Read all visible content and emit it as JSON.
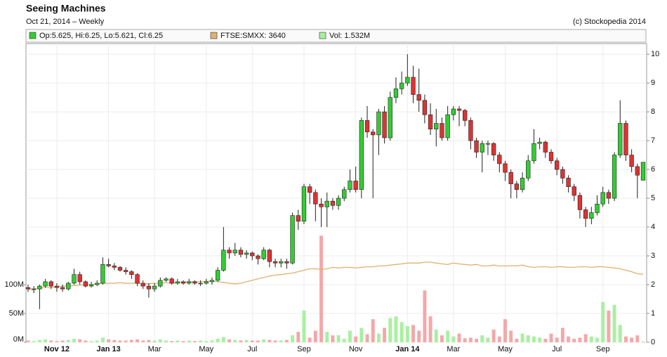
{
  "chart_data": {
    "type": "candlestick",
    "title": "Seeing Machines",
    "subtitle": "Oct 21, 2014 – Weekly",
    "source": "(c) Stockopedia 2014",
    "categories": [
      null,
      null,
      null,
      null,
      null,
      "Nov 12",
      null,
      null,
      null,
      null,
      null,
      null,
      null,
      null,
      "Jan 13",
      null,
      null,
      null,
      null,
      null,
      null,
      null,
      "Mar",
      null,
      null,
      null,
      null,
      null,
      null,
      null,
      null,
      "May",
      null,
      null,
      null,
      null,
      null,
      null,
      null,
      "Jul",
      null,
      null,
      null,
      null,
      null,
      null,
      null,
      null,
      "Sep",
      null,
      null,
      null,
      null,
      null,
      null,
      null,
      null,
      "Nov",
      null,
      null,
      null,
      null,
      null,
      null,
      null,
      null,
      "Jan 14",
      null,
      null,
      null,
      null,
      null,
      null,
      null,
      "Mar",
      null,
      null,
      null,
      null,
      null,
      null,
      null,
      null,
      "May",
      null,
      null,
      null,
      null,
      null,
      null,
      null,
      null,
      "Jul",
      null,
      null,
      null,
      null,
      null,
      null,
      null,
      "Sep",
      null,
      null,
      null,
      null,
      null,
      null,
      null
    ],
    "ylim": [
      0,
      10.37
    ],
    "yticks": [
      0,
      1,
      2,
      3,
      4,
      5,
      6,
      7,
      8,
      9,
      10
    ],
    "y2lim": [
      0,
      518500000
    ],
    "y2ticks": [
      {
        "value": 0,
        "label": "0M"
      },
      {
        "value": 50000000,
        "label": "50M"
      },
      {
        "value": 100000000,
        "label": "100M"
      }
    ],
    "grid": true,
    "series": [
      {
        "name": "Op:5.625, Hi:6.25, Lo:5.621, Cl:6.25",
        "type": "candlestick",
        "color": "#33cc33",
        "down_color": "#dd3333",
        "values": [
          [
            1.9,
            2.0,
            1.75,
            1.85
          ],
          [
            1.85,
            1.95,
            1.7,
            1.85
          ],
          [
            1.85,
            2.0,
            1.15,
            1.95
          ],
          [
            1.95,
            2.2,
            1.9,
            2.1
          ],
          [
            2.1,
            2.15,
            1.85,
            1.95
          ],
          [
            1.95,
            2.05,
            1.75,
            1.9
          ],
          [
            1.9,
            2.0,
            1.75,
            1.85
          ],
          [
            1.85,
            2.1,
            1.8,
            2.05
          ],
          [
            2.05,
            2.55,
            2.0,
            2.35
          ],
          [
            2.35,
            2.45,
            2.0,
            2.1
          ],
          [
            2.1,
            2.15,
            1.9,
            1.95
          ],
          [
            1.95,
            2.1,
            1.9,
            2.0
          ],
          [
            2.0,
            2.15,
            1.95,
            2.05
          ],
          [
            2.05,
            2.95,
            2.0,
            2.7
          ],
          [
            2.7,
            2.9,
            2.6,
            2.65
          ],
          [
            2.65,
            2.75,
            2.5,
            2.6
          ],
          [
            2.6,
            2.65,
            2.45,
            2.5
          ],
          [
            2.5,
            2.6,
            2.35,
            2.45
          ],
          [
            2.45,
            2.5,
            2.2,
            2.35
          ],
          [
            2.35,
            2.4,
            1.95,
            2.05
          ],
          [
            2.05,
            2.15,
            1.85,
            1.95
          ],
          [
            1.95,
            2.05,
            1.55,
            1.85
          ],
          [
            1.85,
            2.05,
            1.75,
            1.95
          ],
          [
            1.95,
            2.25,
            1.9,
            2.15
          ],
          [
            2.15,
            2.25,
            2.1,
            2.2
          ],
          [
            2.2,
            2.25,
            2.0,
            2.05
          ],
          [
            2.05,
            2.2,
            2.0,
            2.1
          ],
          [
            2.1,
            2.15,
            2.0,
            2.05
          ],
          [
            2.05,
            2.2,
            2.0,
            2.1
          ],
          [
            2.1,
            2.15,
            2.0,
            2.05
          ],
          [
            2.05,
            2.15,
            1.95,
            2.05
          ],
          [
            2.05,
            2.2,
            2.0,
            2.1
          ],
          [
            2.1,
            2.25,
            2.0,
            2.15
          ],
          [
            2.15,
            2.6,
            2.1,
            2.5
          ],
          [
            2.5,
            4.0,
            2.45,
            3.2
          ],
          [
            3.2,
            3.3,
            2.9,
            3.1
          ],
          [
            3.1,
            3.45,
            3.0,
            3.2
          ],
          [
            3.2,
            3.3,
            2.95,
            3.05
          ],
          [
            3.05,
            3.2,
            2.9,
            3.1
          ],
          [
            3.1,
            3.15,
            2.85,
            3.0
          ],
          [
            3.0,
            3.05,
            2.7,
            2.9
          ],
          [
            2.9,
            3.3,
            2.85,
            3.2
          ],
          [
            3.2,
            3.25,
            2.6,
            2.8
          ],
          [
            2.8,
            2.9,
            2.6,
            2.75
          ],
          [
            2.75,
            2.9,
            2.6,
            2.8
          ],
          [
            2.8,
            2.9,
            2.55,
            2.75
          ],
          [
            2.75,
            4.5,
            2.7,
            4.4
          ],
          [
            4.4,
            4.6,
            3.9,
            4.2
          ],
          [
            4.2,
            5.5,
            4.1,
            5.4
          ],
          [
            5.4,
            5.5,
            4.8,
            5.2
          ],
          [
            5.2,
            5.3,
            4.2,
            4.8
          ],
          [
            4.8,
            5.0,
            4.0,
            4.7
          ],
          [
            4.7,
            5.2,
            4.0,
            4.9
          ],
          [
            4.9,
            5.0,
            4.6,
            4.75
          ],
          [
            4.75,
            5.1,
            4.6,
            5.0
          ],
          [
            5.0,
            5.4,
            4.9,
            5.3
          ],
          [
            5.3,
            6.0,
            5.2,
            5.6
          ],
          [
            5.6,
            6.1,
            5.2,
            5.3
          ],
          [
            5.3,
            7.8,
            5.0,
            7.7
          ],
          [
            7.7,
            8.2,
            7.1,
            7.3
          ],
          [
            7.3,
            7.4,
            5.0,
            7.2
          ],
          [
            7.2,
            8.1,
            6.5,
            8.0
          ],
          [
            8.0,
            8.2,
            6.9,
            7.1
          ],
          [
            7.1,
            8.7,
            7.0,
            8.5
          ],
          [
            8.5,
            9.2,
            8.3,
            8.8
          ],
          [
            8.8,
            9.4,
            8.6,
            9.0
          ],
          [
            9.0,
            10.0,
            8.9,
            9.2
          ],
          [
            9.2,
            9.6,
            8.3,
            8.6
          ],
          [
            8.6,
            9.5,
            8.0,
            8.4
          ],
          [
            8.4,
            8.6,
            7.6,
            7.9
          ],
          [
            7.9,
            8.3,
            7.2,
            7.4
          ],
          [
            7.4,
            8.1,
            6.8,
            7.6
          ],
          [
            7.6,
            7.8,
            7.0,
            7.1
          ],
          [
            7.1,
            8.2,
            7.0,
            7.9
          ],
          [
            7.9,
            8.2,
            7.7,
            8.1
          ],
          [
            8.1,
            8.2,
            7.5,
            8.05
          ],
          [
            8.05,
            8.1,
            7.5,
            7.7
          ],
          [
            7.7,
            7.8,
            6.7,
            7.0
          ],
          [
            7.0,
            7.1,
            6.4,
            6.6
          ],
          [
            6.6,
            7.0,
            5.9,
            6.9
          ],
          [
            6.9,
            7.0,
            6.5,
            6.9
          ],
          [
            6.9,
            6.95,
            6.3,
            6.5
          ],
          [
            6.5,
            6.6,
            5.9,
            6.2
          ],
          [
            6.2,
            6.3,
            5.6,
            5.9
          ],
          [
            5.9,
            6.0,
            5.0,
            5.5
          ],
          [
            5.5,
            5.6,
            5.0,
            5.3
          ],
          [
            5.3,
            5.9,
            5.2,
            5.7
          ],
          [
            5.7,
            6.5,
            5.6,
            6.3
          ],
          [
            6.3,
            7.4,
            6.2,
            6.9
          ],
          [
            6.9,
            7.1,
            6.7,
            6.95
          ],
          [
            6.95,
            7.0,
            6.4,
            6.6
          ],
          [
            6.6,
            6.7,
            6.2,
            6.3
          ],
          [
            6.3,
            6.4,
            5.8,
            6.0
          ],
          [
            6.0,
            6.1,
            5.5,
            5.7
          ],
          [
            5.7,
            5.8,
            5.2,
            5.4
          ],
          [
            5.4,
            5.5,
            4.9,
            5.1
          ],
          [
            5.1,
            5.2,
            4.3,
            4.6
          ],
          [
            4.6,
            4.7,
            4.0,
            4.3
          ],
          [
            4.3,
            4.7,
            4.1,
            4.5
          ],
          [
            4.5,
            5.1,
            4.4,
            4.8
          ],
          [
            4.8,
            5.4,
            4.7,
            5.2
          ],
          [
            5.2,
            5.3,
            4.8,
            5.0
          ],
          [
            5.0,
            6.6,
            4.9,
            6.5
          ],
          [
            6.5,
            8.4,
            6.4,
            7.6
          ],
          [
            7.6,
            7.7,
            6.3,
            6.5
          ],
          [
            6.5,
            6.7,
            5.9,
            6.1
          ],
          [
            6.1,
            6.2,
            5.0,
            5.8
          ],
          [
            5.625,
            6.25,
            5.621,
            6.25
          ]
        ]
      },
      {
        "name": "FTSE:SMXX: 3640",
        "type": "line",
        "color": "#e0b070",
        "values": [
          1.85,
          1.85,
          1.88,
          1.9,
          1.9,
          1.92,
          1.95,
          1.95,
          1.97,
          1.98,
          2.0,
          2.0,
          2.02,
          2.05,
          2.05,
          2.05,
          2.07,
          2.05,
          2.05,
          2.05,
          2.03,
          2.03,
          2.05,
          2.05,
          2.07,
          2.05,
          2.07,
          2.08,
          2.1,
          2.1,
          2.1,
          2.12,
          2.12,
          2.1,
          2.08,
          2.05,
          2.03,
          2.05,
          2.1,
          2.15,
          2.2,
          2.25,
          2.3,
          2.33,
          2.35,
          2.38,
          2.4,
          2.45,
          2.5,
          2.55,
          2.55,
          2.53,
          2.55,
          2.6,
          2.58,
          2.6,
          2.6,
          2.58,
          2.6,
          2.62,
          2.62,
          2.65,
          2.65,
          2.68,
          2.7,
          2.72,
          2.75,
          2.75,
          2.75,
          2.78,
          2.78,
          2.75,
          2.72,
          2.7,
          2.75,
          2.72,
          2.7,
          2.68,
          2.7,
          2.65,
          2.65,
          2.68,
          2.65,
          2.65,
          2.66,
          2.65,
          2.68,
          2.62,
          2.6,
          2.62,
          2.62,
          2.6,
          2.62,
          2.62,
          2.6,
          2.6,
          2.62,
          2.62,
          2.6,
          2.62,
          2.62,
          2.6,
          2.58,
          2.55,
          2.5,
          2.45,
          2.38,
          2.36
        ]
      },
      {
        "name": "Vol: 1.532M",
        "type": "bar",
        "axis": "y2",
        "color": "#a8f0a0",
        "down_color": "#f4a8a8",
        "values": [
          3000000.0,
          2000000.0,
          4000000.0,
          5000000.0,
          3000000.0,
          2000000.0,
          3000000.0,
          4000000.0,
          6000000.0,
          5000000.0,
          3000000.0,
          2000000.0,
          3000000.0,
          8000000.0,
          5000000.0,
          4000000.0,
          3000000.0,
          3000000.0,
          4000000.0,
          5000000.0,
          3000000.0,
          4000000.0,
          3000000.0,
          5000000.0,
          3000000.0,
          2000000.0,
          3000000.0,
          2000000.0,
          3000000.0,
          2000000.0,
          3000000.0,
          2000000.0,
          3000000.0,
          6000000.0,
          9000000.0,
          5000000.0,
          4000000.0,
          3000000.0,
          4000000.0,
          3000000.0,
          3000000.0,
          5000000.0,
          4000000.0,
          3000000.0,
          3000000.0,
          4000000.0,
          12000000.0,
          18000000.0,
          55000000.0,
          8000000.0,
          20000000.0,
          185000000.0,
          18000000.0,
          12000000.0,
          12000000.0,
          6000000.0,
          20000000.0,
          10000000.0,
          25000000.0,
          14000000.0,
          40000000.0,
          15000000.0,
          25000000.0,
          42000000.0,
          45000000.0,
          35000000.0,
          28000000.0,
          30000000.0,
          20000000.0,
          90000000.0,
          45000000.0,
          22000000.0,
          12000000.0,
          20000000.0,
          10000000.0,
          15000000.0,
          7000000.0,
          8000000.0,
          6000000.0,
          12000000.0,
          8000000.0,
          22000000.0,
          10000000.0,
          40000000.0,
          20000000.0,
          6000000.0,
          15000000.0,
          12000000.0,
          10000000.0,
          8000000.0,
          6000000.0,
          15000000.0,
          8000000.0,
          25000000.0,
          10000000.0,
          6000000.0,
          8000000.0,
          14000000.0,
          10000000.0,
          8000000.0,
          70000000.0,
          55000000.0,
          65000000.0,
          30000000.0,
          10000000.0,
          8000000.0,
          12000000.0,
          1532000
        ]
      }
    ]
  }
}
